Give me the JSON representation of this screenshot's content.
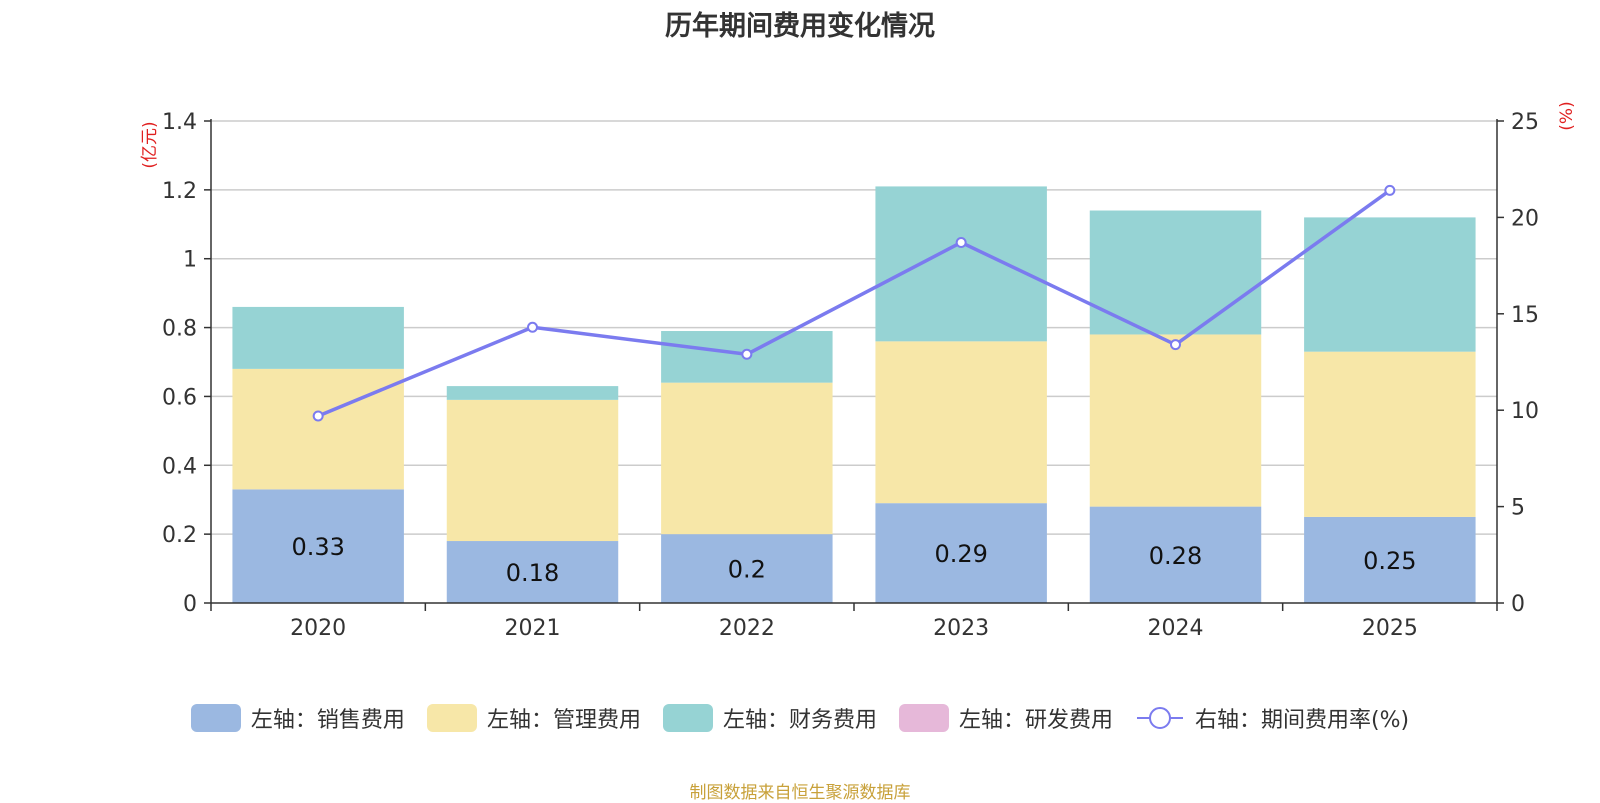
{
  "chart_data": {
    "type": "bar",
    "stacked": true,
    "title": "历年期间费用变化情况",
    "categories": [
      "2020",
      "2021",
      "2022",
      "2023",
      "2024",
      "2025"
    ],
    "left_axis": {
      "label": "(亿元)",
      "min": 0,
      "max": 1.4,
      "ticks": [
        "0",
        "0.2",
        "0.4",
        "0.6",
        "0.8",
        "1",
        "1.2",
        "1.4"
      ],
      "tick_values": [
        0,
        0.2,
        0.4,
        0.6,
        0.8,
        1.0,
        1.2,
        1.4
      ]
    },
    "right_axis": {
      "label": "(%)",
      "min": 0,
      "max": 25,
      "ticks": [
        "0",
        "5",
        "10",
        "15",
        "20",
        "25"
      ],
      "tick_values": [
        0,
        5,
        10,
        15,
        20,
        25
      ]
    },
    "series": [
      {
        "name": "左轴：销售费用",
        "axis": "left",
        "kind": "bar",
        "color": "#9bb8e1",
        "values": [
          0.33,
          0.18,
          0.2,
          0.29,
          0.28,
          0.25
        ],
        "labels": [
          "0.33",
          "0.18",
          "0.2",
          "0.29",
          "0.28",
          "0.25"
        ]
      },
      {
        "name": "左轴：管理费用",
        "axis": "left",
        "kind": "bar",
        "color": "#f7e7a8",
        "values": [
          0.35,
          0.41,
          0.44,
          0.47,
          0.5,
          0.48
        ]
      },
      {
        "name": "左轴：财务费用",
        "axis": "left",
        "kind": "bar",
        "color": "#96d3d4",
        "values": [
          0.18,
          0.04,
          0.15,
          0.45,
          0.36,
          0.39
        ]
      },
      {
        "name": "左轴：研发费用",
        "axis": "left",
        "kind": "bar",
        "color": "#e6b8d9",
        "values": [
          0,
          0,
          0,
          0,
          0,
          0
        ]
      },
      {
        "name": "右轴：期间费用率(%)",
        "axis": "right",
        "kind": "line",
        "color": "#7b7bef",
        "values": [
          9.7,
          14.3,
          12.9,
          18.7,
          13.4,
          21.4
        ]
      }
    ],
    "legend_position": "bottom",
    "grid": true
  },
  "source": "制图数据来自恒生聚源数据库"
}
